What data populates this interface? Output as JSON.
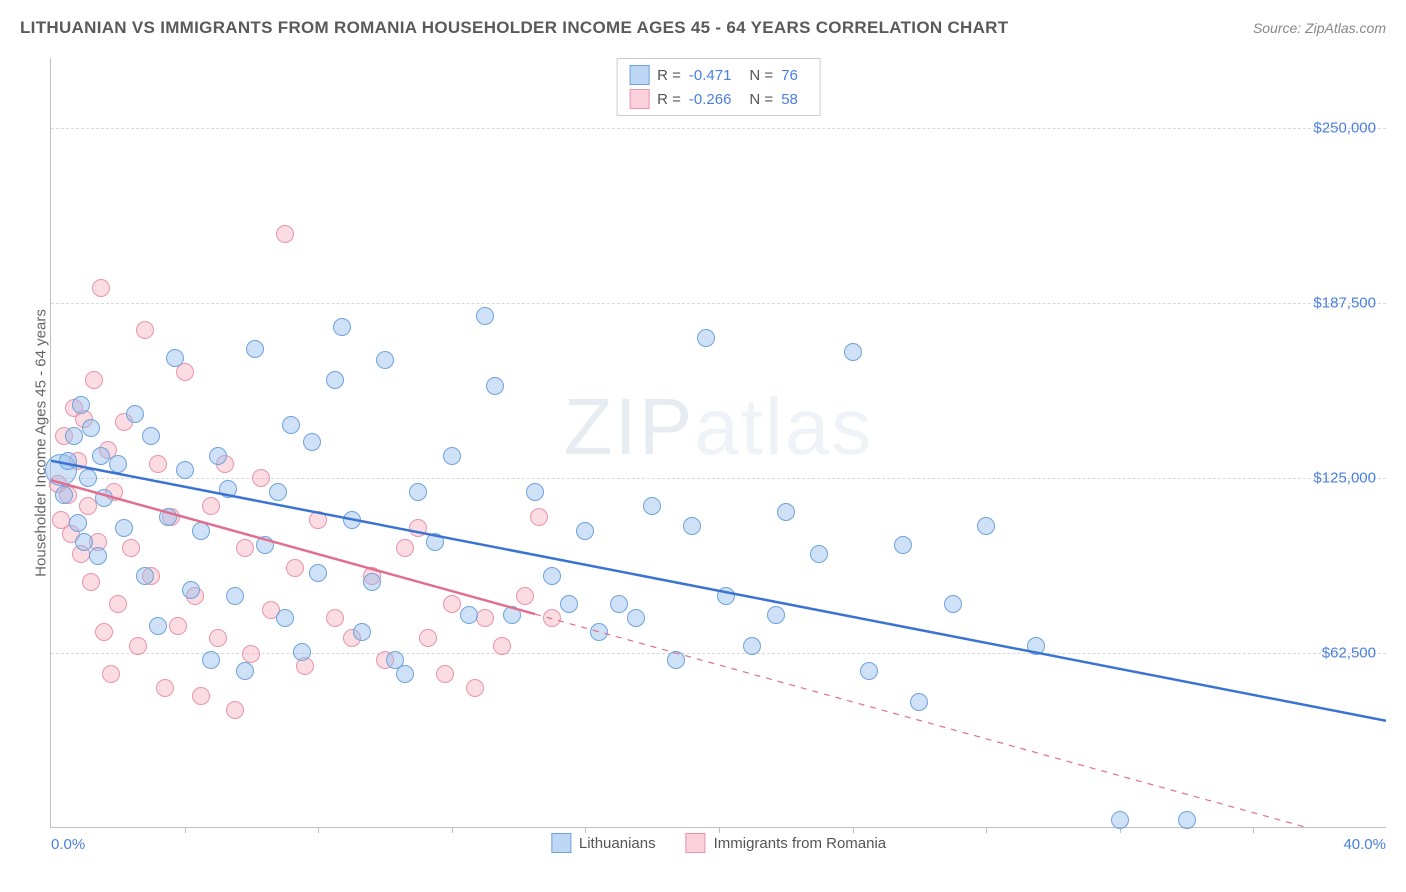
{
  "title": "LITHUANIAN VS IMMIGRANTS FROM ROMANIA HOUSEHOLDER INCOME AGES 45 - 64 YEARS CORRELATION CHART",
  "source": "Source: ZipAtlas.com",
  "watermark_bold": "ZIP",
  "watermark_thin": "atlas",
  "chart": {
    "type": "scatter",
    "y_axis_label": "Householder Income Ages 45 - 64 years",
    "xlim": [
      0,
      40
    ],
    "ylim": [
      0,
      275000
    ],
    "x_start_label": "0.0%",
    "x_end_label": "40.0%",
    "x_tick_positions": [
      4,
      8,
      12,
      16,
      20,
      24,
      28,
      32,
      36
    ],
    "y_grid": [
      62500,
      125000,
      187500,
      250000
    ],
    "y_tick_labels": [
      "$62,500",
      "$125,000",
      "$187,500",
      "$250,000"
    ],
    "tick_label_color": "#4a7fe0",
    "grid_color": "#d8d8d8",
    "axis_color": "#c0c0c0",
    "background_color": "#ffffff",
    "point_radius": 9,
    "point_radius_large": 16,
    "label_fontsize": 15,
    "title_fontsize": 17,
    "title_color": "#5a5a5a"
  },
  "series": {
    "lithuanians": {
      "label": "Lithuanians",
      "fill_color": "rgba(147,188,237,0.45)",
      "stroke_color": "#6fa3dd",
      "trend_color": "#3b73d1",
      "trend_width": 2.5,
      "trend_dash": "none",
      "trend": {
        "x1": 0,
        "y1": 131000,
        "x2": 40,
        "y2": 38000
      },
      "R": "-0.471",
      "N": "76",
      "points": [
        [
          0.3,
          128000
        ],
        [
          0.4,
          119000
        ],
        [
          0.5,
          131000
        ],
        [
          0.7,
          140000
        ],
        [
          0.8,
          109000
        ],
        [
          0.9,
          151000
        ],
        [
          1.0,
          102000
        ],
        [
          1.1,
          125000
        ],
        [
          1.2,
          143000
        ],
        [
          1.4,
          97000
        ],
        [
          1.5,
          133000
        ],
        [
          1.6,
          118000
        ],
        [
          2.0,
          130000
        ],
        [
          2.2,
          107000
        ],
        [
          2.5,
          148000
        ],
        [
          2.8,
          90000
        ],
        [
          3.0,
          140000
        ],
        [
          3.2,
          72000
        ],
        [
          3.5,
          111000
        ],
        [
          3.7,
          168000
        ],
        [
          4.0,
          128000
        ],
        [
          4.2,
          85000
        ],
        [
          4.5,
          106000
        ],
        [
          4.8,
          60000
        ],
        [
          5.0,
          133000
        ],
        [
          5.3,
          121000
        ],
        [
          5.5,
          83000
        ],
        [
          5.8,
          56000
        ],
        [
          6.1,
          171000
        ],
        [
          6.4,
          101000
        ],
        [
          6.8,
          120000
        ],
        [
          7.0,
          75000
        ],
        [
          7.2,
          144000
        ],
        [
          7.5,
          63000
        ],
        [
          7.8,
          138000
        ],
        [
          8.0,
          91000
        ],
        [
          8.5,
          160000
        ],
        [
          8.7,
          179000
        ],
        [
          9.0,
          110000
        ],
        [
          9.3,
          70000
        ],
        [
          9.6,
          88000
        ],
        [
          10.0,
          167000
        ],
        [
          10.3,
          60000
        ],
        [
          10.6,
          55000
        ],
        [
          11.0,
          120000
        ],
        [
          11.5,
          102000
        ],
        [
          12.0,
          133000
        ],
        [
          12.5,
          76000
        ],
        [
          13.0,
          183000
        ],
        [
          13.3,
          158000
        ],
        [
          13.8,
          76000
        ],
        [
          14.5,
          120000
        ],
        [
          15.0,
          90000
        ],
        [
          15.5,
          80000
        ],
        [
          16.0,
          106000
        ],
        [
          16.4,
          70000
        ],
        [
          17.0,
          80000
        ],
        [
          17.5,
          75000
        ],
        [
          18.0,
          115000
        ],
        [
          18.7,
          60000
        ],
        [
          19.2,
          108000
        ],
        [
          19.6,
          175000
        ],
        [
          20.2,
          83000
        ],
        [
          21.0,
          65000
        ],
        [
          21.7,
          76000
        ],
        [
          22.0,
          113000
        ],
        [
          23.0,
          98000
        ],
        [
          24.0,
          170000
        ],
        [
          24.5,
          56000
        ],
        [
          25.5,
          101000
        ],
        [
          26.0,
          45000
        ],
        [
          27.0,
          80000
        ],
        [
          28.0,
          108000
        ],
        [
          29.5,
          65000
        ],
        [
          32.0,
          3000
        ],
        [
          34.0,
          3000
        ]
      ]
    },
    "romania": {
      "label": "Immigrants from Romania",
      "fill_color": "rgba(247,177,194,0.45)",
      "stroke_color": "#e994ab",
      "trend_color": "#e06f8f",
      "trend_width": 2.5,
      "trend_dash_solid_until_x": 14.5,
      "trend": {
        "x1": 0,
        "y1": 124000,
        "x2": 40,
        "y2": -8000
      },
      "R": "-0.266",
      "N": "58",
      "points": [
        [
          0.2,
          123000
        ],
        [
          0.3,
          110000
        ],
        [
          0.4,
          140000
        ],
        [
          0.5,
          119000
        ],
        [
          0.6,
          105000
        ],
        [
          0.7,
          150000
        ],
        [
          0.8,
          131000
        ],
        [
          0.9,
          98000
        ],
        [
          1.0,
          146000
        ],
        [
          1.1,
          115000
        ],
        [
          1.2,
          88000
        ],
        [
          1.3,
          160000
        ],
        [
          1.4,
          102000
        ],
        [
          1.5,
          193000
        ],
        [
          1.6,
          70000
        ],
        [
          1.7,
          135000
        ],
        [
          1.8,
          55000
        ],
        [
          1.9,
          120000
        ],
        [
          2.0,
          80000
        ],
        [
          2.2,
          145000
        ],
        [
          2.4,
          100000
        ],
        [
          2.6,
          65000
        ],
        [
          2.8,
          178000
        ],
        [
          3.0,
          90000
        ],
        [
          3.2,
          130000
        ],
        [
          3.4,
          50000
        ],
        [
          3.6,
          111000
        ],
        [
          3.8,
          72000
        ],
        [
          4.0,
          163000
        ],
        [
          4.3,
          83000
        ],
        [
          4.5,
          47000
        ],
        [
          4.8,
          115000
        ],
        [
          5.0,
          68000
        ],
        [
          5.2,
          130000
        ],
        [
          5.5,
          42000
        ],
        [
          5.8,
          100000
        ],
        [
          6.0,
          62000
        ],
        [
          6.3,
          125000
        ],
        [
          6.6,
          78000
        ],
        [
          7.0,
          212000
        ],
        [
          7.3,
          93000
        ],
        [
          7.6,
          58000
        ],
        [
          8.0,
          110000
        ],
        [
          8.5,
          75000
        ],
        [
          9.0,
          68000
        ],
        [
          9.6,
          90000
        ],
        [
          10.0,
          60000
        ],
        [
          10.6,
          100000
        ],
        [
          11.0,
          107000
        ],
        [
          11.3,
          68000
        ],
        [
          11.8,
          55000
        ],
        [
          12.0,
          80000
        ],
        [
          12.7,
          50000
        ],
        [
          13.0,
          75000
        ],
        [
          13.5,
          65000
        ],
        [
          14.2,
          83000
        ],
        [
          14.6,
          111000
        ],
        [
          15.0,
          75000
        ]
      ]
    }
  },
  "legend": {
    "r_label": "R =",
    "n_label": "N ="
  }
}
